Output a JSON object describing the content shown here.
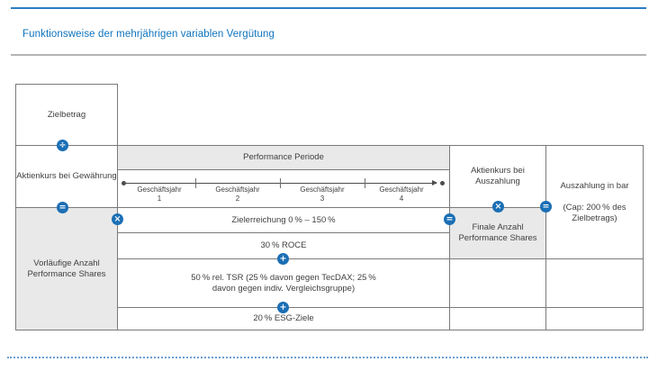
{
  "header": {
    "title": "Funktionsweise der mehrjährigen variablen Vergütung"
  },
  "flow": {
    "target_amount": "Zielbetrag",
    "share_price_grant": "Aktienkurs bei Gewährung",
    "preliminary_shares": "Vorläufige Anzahl Performance Shares",
    "share_price_payout": "Aktienkurs bei Auszahlung",
    "final_shares": "Finale Anzahl Performance Shares",
    "payout": "Auszahlung in bar",
    "payout_cap": "(Cap: 200 % des Zielbetrags)"
  },
  "performance_period": {
    "title": "Performance Periode",
    "years": [
      {
        "label": "Geschäftsjahr",
        "number": "1"
      },
      {
        "label": "Geschäftsjahr",
        "number": "2"
      },
      {
        "label": "Geschäftsjahr",
        "number": "3"
      },
      {
        "label": "Geschäftsjahr",
        "number": "4"
      }
    ]
  },
  "targets": {
    "achievement": "Zielerreichung 0 % – 150 %",
    "components": [
      "30 % ROCE",
      "50 % rel. TSR (25 % davon gegen TecDAX; 25 % davon gegen indiv. Vergleichsgruppe)",
      "20 % ESG-Ziele"
    ]
  },
  "operators": {
    "divide": "÷",
    "equals": "=",
    "multiply": "×",
    "plus": "+"
  },
  "colors": {
    "accent_blue": "#0e73bd",
    "icon_blue": "#1b6fb5",
    "border_gray": "#7a7a7a",
    "fill_gray": "#e9e9e9",
    "dotted_blue": "#6b9fd0"
  }
}
